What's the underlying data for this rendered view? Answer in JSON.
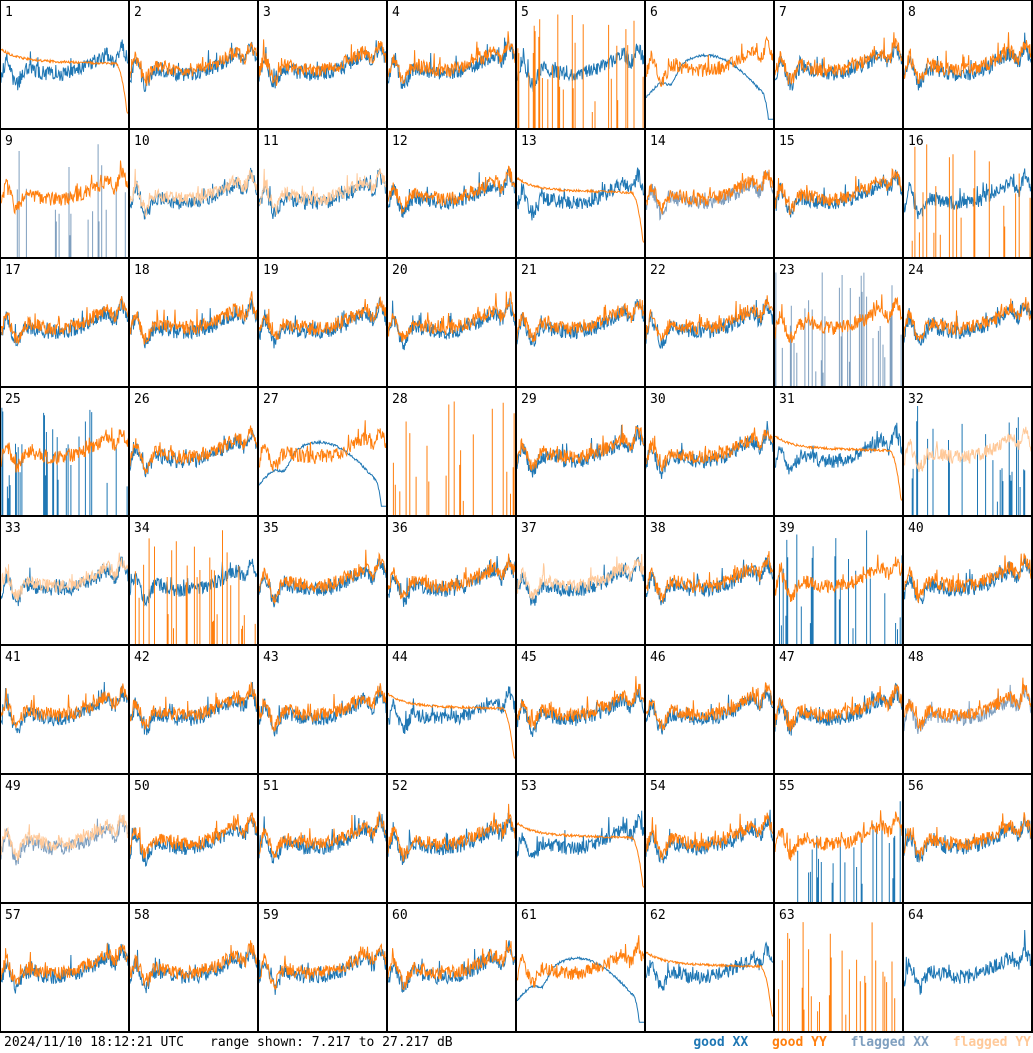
{
  "chart_data": {
    "type": "line",
    "layout": "8x8 small multiples",
    "panels": [
      "1",
      "2",
      "3",
      "4",
      "5",
      "6",
      "7",
      "8",
      "9",
      "10",
      "11",
      "12",
      "13",
      "14",
      "15",
      "16",
      "17",
      "18",
      "19",
      "20",
      "21",
      "22",
      "23",
      "24",
      "25",
      "26",
      "27",
      "28",
      "29",
      "30",
      "31",
      "32",
      "33",
      "34",
      "35",
      "36",
      "37",
      "38",
      "39",
      "40",
      "41",
      "42",
      "43",
      "44",
      "45",
      "46",
      "47",
      "48",
      "49",
      "50",
      "51",
      "52",
      "53",
      "54",
      "55",
      "56",
      "57",
      "58",
      "59",
      "60",
      "61",
      "62",
      "63",
      "64"
    ],
    "ylim_db": [
      7.217,
      27.217
    ],
    "series": [
      {
        "name": "good XX",
        "color": "#1f77b4"
      },
      {
        "name": "good YY",
        "color": "#ff7f0e"
      },
      {
        "name": "flagged XX",
        "color": "#7f9fbf"
      },
      {
        "name": "flagged YY",
        "color": "#ffc999"
      }
    ],
    "flags": {
      "flagged_xx_panels": [
        9,
        14,
        23,
        48,
        49
      ],
      "flagged_yy_panels": [
        10,
        11,
        32,
        33,
        37,
        49
      ]
    },
    "curve_styles": {
      "xx": {
        "1": "n",
        "2": "n",
        "3": "n",
        "4": "n",
        "5": "n",
        "6": "h",
        "7": "n",
        "8": "n",
        "9": "s",
        "10": "n",
        "11": "n",
        "12": "n",
        "13": "n",
        "14": "n",
        "15": "n",
        "16": "n",
        "17": "n",
        "18": "n",
        "19": "n",
        "20": "n",
        "21": "n",
        "22": "n",
        "23": "s",
        "24": "n",
        "25": "s",
        "26": "n",
        "27": "h",
        "28": "z",
        "29": "n",
        "30": "n",
        "31": "n",
        "32": "s",
        "33": "n",
        "34": "n",
        "35": "n",
        "36": "n",
        "37": "n",
        "38": "n",
        "39": "s",
        "40": "n",
        "41": "n",
        "42": "n",
        "43": "n",
        "44": "n",
        "45": "n",
        "46": "n",
        "47": "n",
        "48": "n",
        "49": "n",
        "50": "n",
        "51": "n",
        "52": "n",
        "53": "n",
        "54": "n",
        "55": "s",
        "56": "n",
        "57": "n",
        "58": "n",
        "59": "n",
        "60": "n",
        "61": "h",
        "62": "n",
        "63": "z",
        "64": "n"
      },
      "yy": {
        "1": "f",
        "2": "n",
        "3": "n",
        "4": "n",
        "5": "s",
        "6": "n",
        "7": "n",
        "8": "n",
        "9": "n",
        "10": "n",
        "11": "n",
        "12": "n",
        "13": "f",
        "14": "n",
        "15": "n",
        "16": "s",
        "17": "n",
        "18": "n",
        "19": "n",
        "20": "n",
        "21": "n",
        "22": "n",
        "23": "n",
        "24": "n",
        "25": "n",
        "26": "n",
        "27": "n",
        "28": "s",
        "29": "n",
        "30": "n",
        "31": "f",
        "32": "n",
        "33": "n",
        "34": "s",
        "35": "n",
        "36": "n",
        "37": "n",
        "38": "n",
        "39": "n",
        "40": "n",
        "41": "n",
        "42": "n",
        "43": "n",
        "44": "f",
        "45": "n",
        "46": "n",
        "47": "n",
        "48": "n",
        "49": "n",
        "50": "n",
        "51": "n",
        "52": "n",
        "53": "f",
        "54": "n",
        "55": "n",
        "56": "n",
        "57": "n",
        "58": "n",
        "59": "n",
        "60": "n",
        "61": "n",
        "62": "f",
        "63": "s",
        "64": "z"
      }
    }
  },
  "footer": {
    "timestamp": "2024/11/10 18:12:21 UTC",
    "range_text": "range shown: 7.217 to 27.217 dB",
    "legend": [
      "good XX",
      "good YY",
      "flagged XX",
      "flagged YY"
    ]
  }
}
